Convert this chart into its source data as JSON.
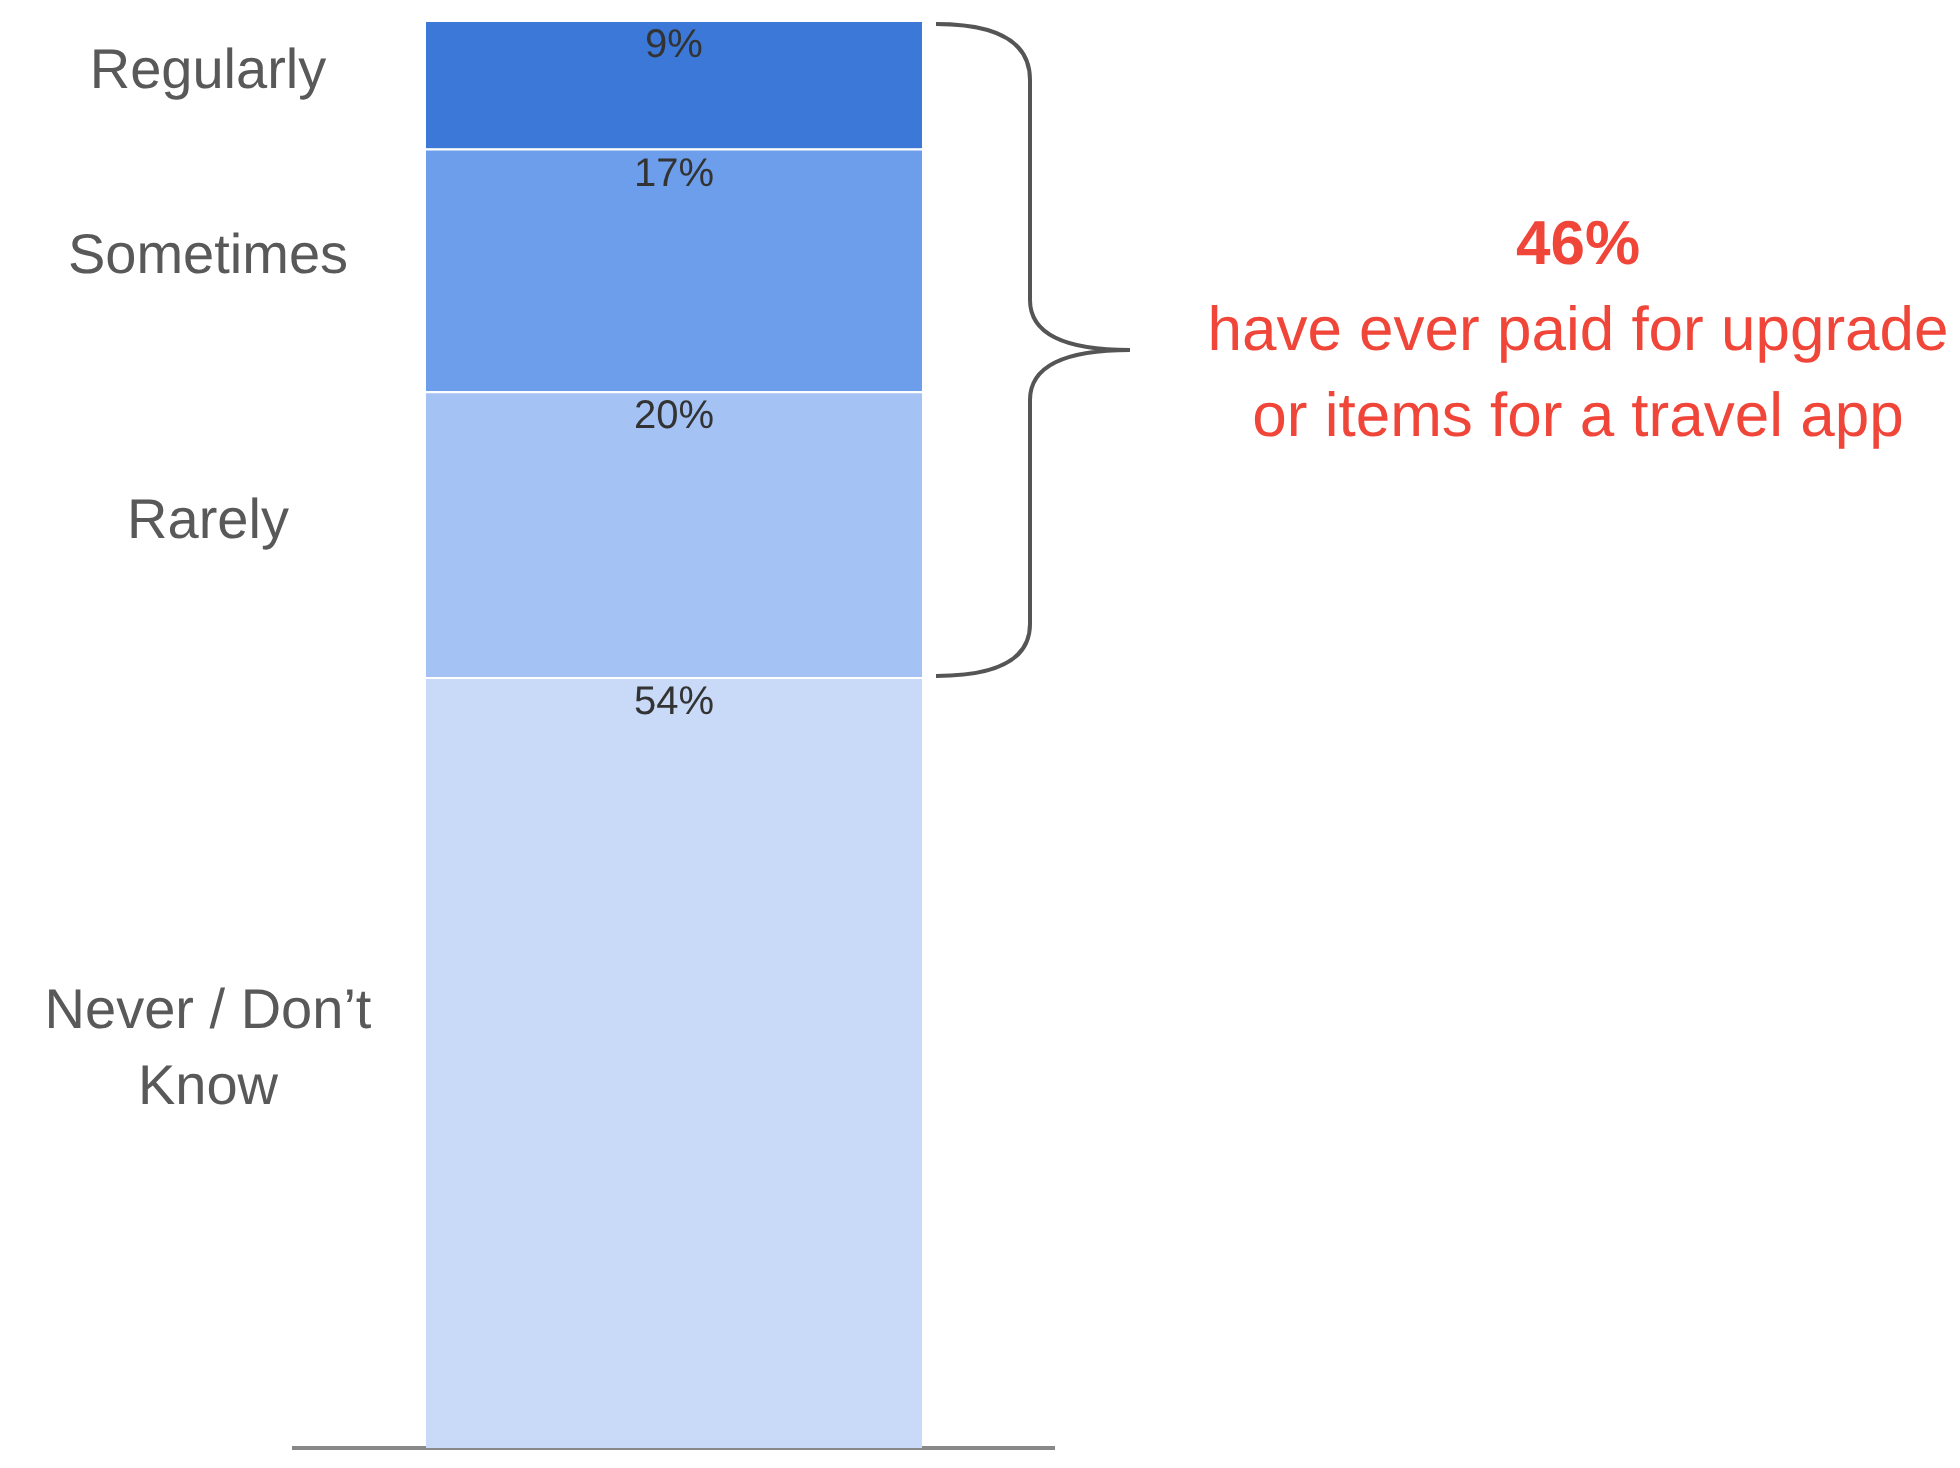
{
  "chart_data": {
    "type": "bar",
    "stacked": true,
    "categories": [
      null
    ],
    "series": [
      {
        "name": "Never / Don’t Know",
        "color": "#c9daf8",
        "values": [
          54
        ],
        "value_labels": [
          "54%"
        ]
      },
      {
        "name": "Rarely",
        "color": "#a4c2f4",
        "values": [
          20
        ],
        "value_labels": [
          "20%"
        ]
      },
      {
        "name": "Sometimes",
        "color": "#6d9eeb",
        "values": [
          17
        ],
        "value_labels": [
          "17%"
        ]
      },
      {
        "name": "Regularly",
        "color": "#3c78d8",
        "values": [
          9
        ],
        "value_labels": [
          "9%"
        ]
      }
    ],
    "annotations": [
      "46%",
      "have ever paid for upgrade or items for a travel app"
    ],
    "legend": false,
    "grid": false
  }
}
